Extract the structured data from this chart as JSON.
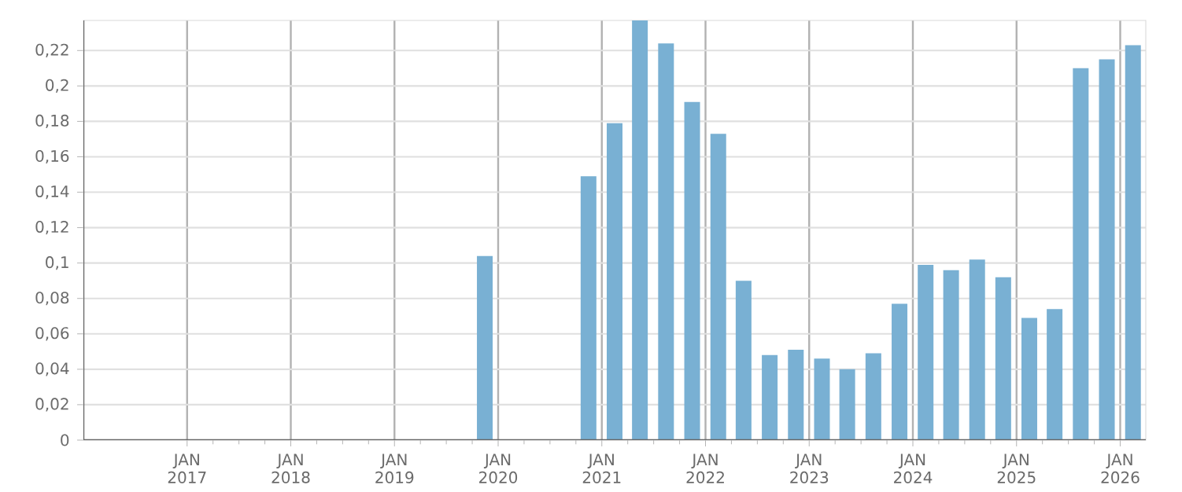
{
  "chart_data": {
    "type": "bar",
    "color": "#79b0d3",
    "x": [
      "2019-11-15",
      "2020-11-15",
      "2021-02-15",
      "2021-05-15",
      "2021-08-15",
      "2021-11-15",
      "2022-02-15",
      "2022-05-15",
      "2022-08-15",
      "2022-11-15",
      "2023-02-15",
      "2023-05-15",
      "2023-08-15",
      "2023-11-15",
      "2024-02-15",
      "2024-05-15",
      "2024-08-15",
      "2024-11-15",
      "2025-02-15",
      "2025-05-15",
      "2025-08-15",
      "2025-11-15",
      "2026-02-15"
    ],
    "values": [
      0.104,
      0.149,
      0.179,
      0.237,
      0.224,
      0.191,
      0.173,
      0.09,
      0.048,
      0.051,
      0.046,
      0.04,
      0.049,
      0.077,
      0.099,
      0.096,
      0.102,
      0.092,
      0.069,
      0.074,
      0.21,
      0.215,
      0.223
    ],
    "xlim": [
      "2016-01-01",
      "2026-04-01"
    ],
    "xticks": [
      {
        "value": "2017-01-01",
        "label": "JAN 2017"
      },
      {
        "value": "2018-01-01",
        "label": "JAN 2018"
      },
      {
        "value": "2019-01-01",
        "label": "JAN 2019"
      },
      {
        "value": "2020-01-01",
        "label": "JAN 2020"
      },
      {
        "value": "2021-01-01",
        "label": "JAN 2021"
      },
      {
        "value": "2022-01-01",
        "label": "JAN 2022"
      },
      {
        "value": "2023-01-01",
        "label": "JAN 2023"
      },
      {
        "value": "2024-01-01",
        "label": "JAN 2024"
      },
      {
        "value": "2025-01-01",
        "label": "JAN 2025"
      },
      {
        "value": "2026-01-01",
        "label": "JAN 2026"
      }
    ],
    "ylim": [
      0,
      0.237
    ],
    "yticks": [
      {
        "value": 0,
        "label": "0"
      },
      {
        "value": 0.02,
        "label": "0,02"
      },
      {
        "value": 0.04,
        "label": "0,04"
      },
      {
        "value": 0.06,
        "label": "0,06"
      },
      {
        "value": 0.08,
        "label": "0,08"
      },
      {
        "value": 0.1,
        "label": "0,1"
      },
      {
        "value": 0.12,
        "label": "0,12"
      },
      {
        "value": 0.14,
        "label": "0,14"
      },
      {
        "value": 0.16,
        "label": "0,16"
      },
      {
        "value": 0.18,
        "label": "0,18"
      },
      {
        "value": 0.2,
        "label": "0,2"
      },
      {
        "value": 0.22,
        "label": "0,22"
      }
    ],
    "grid": true
  }
}
